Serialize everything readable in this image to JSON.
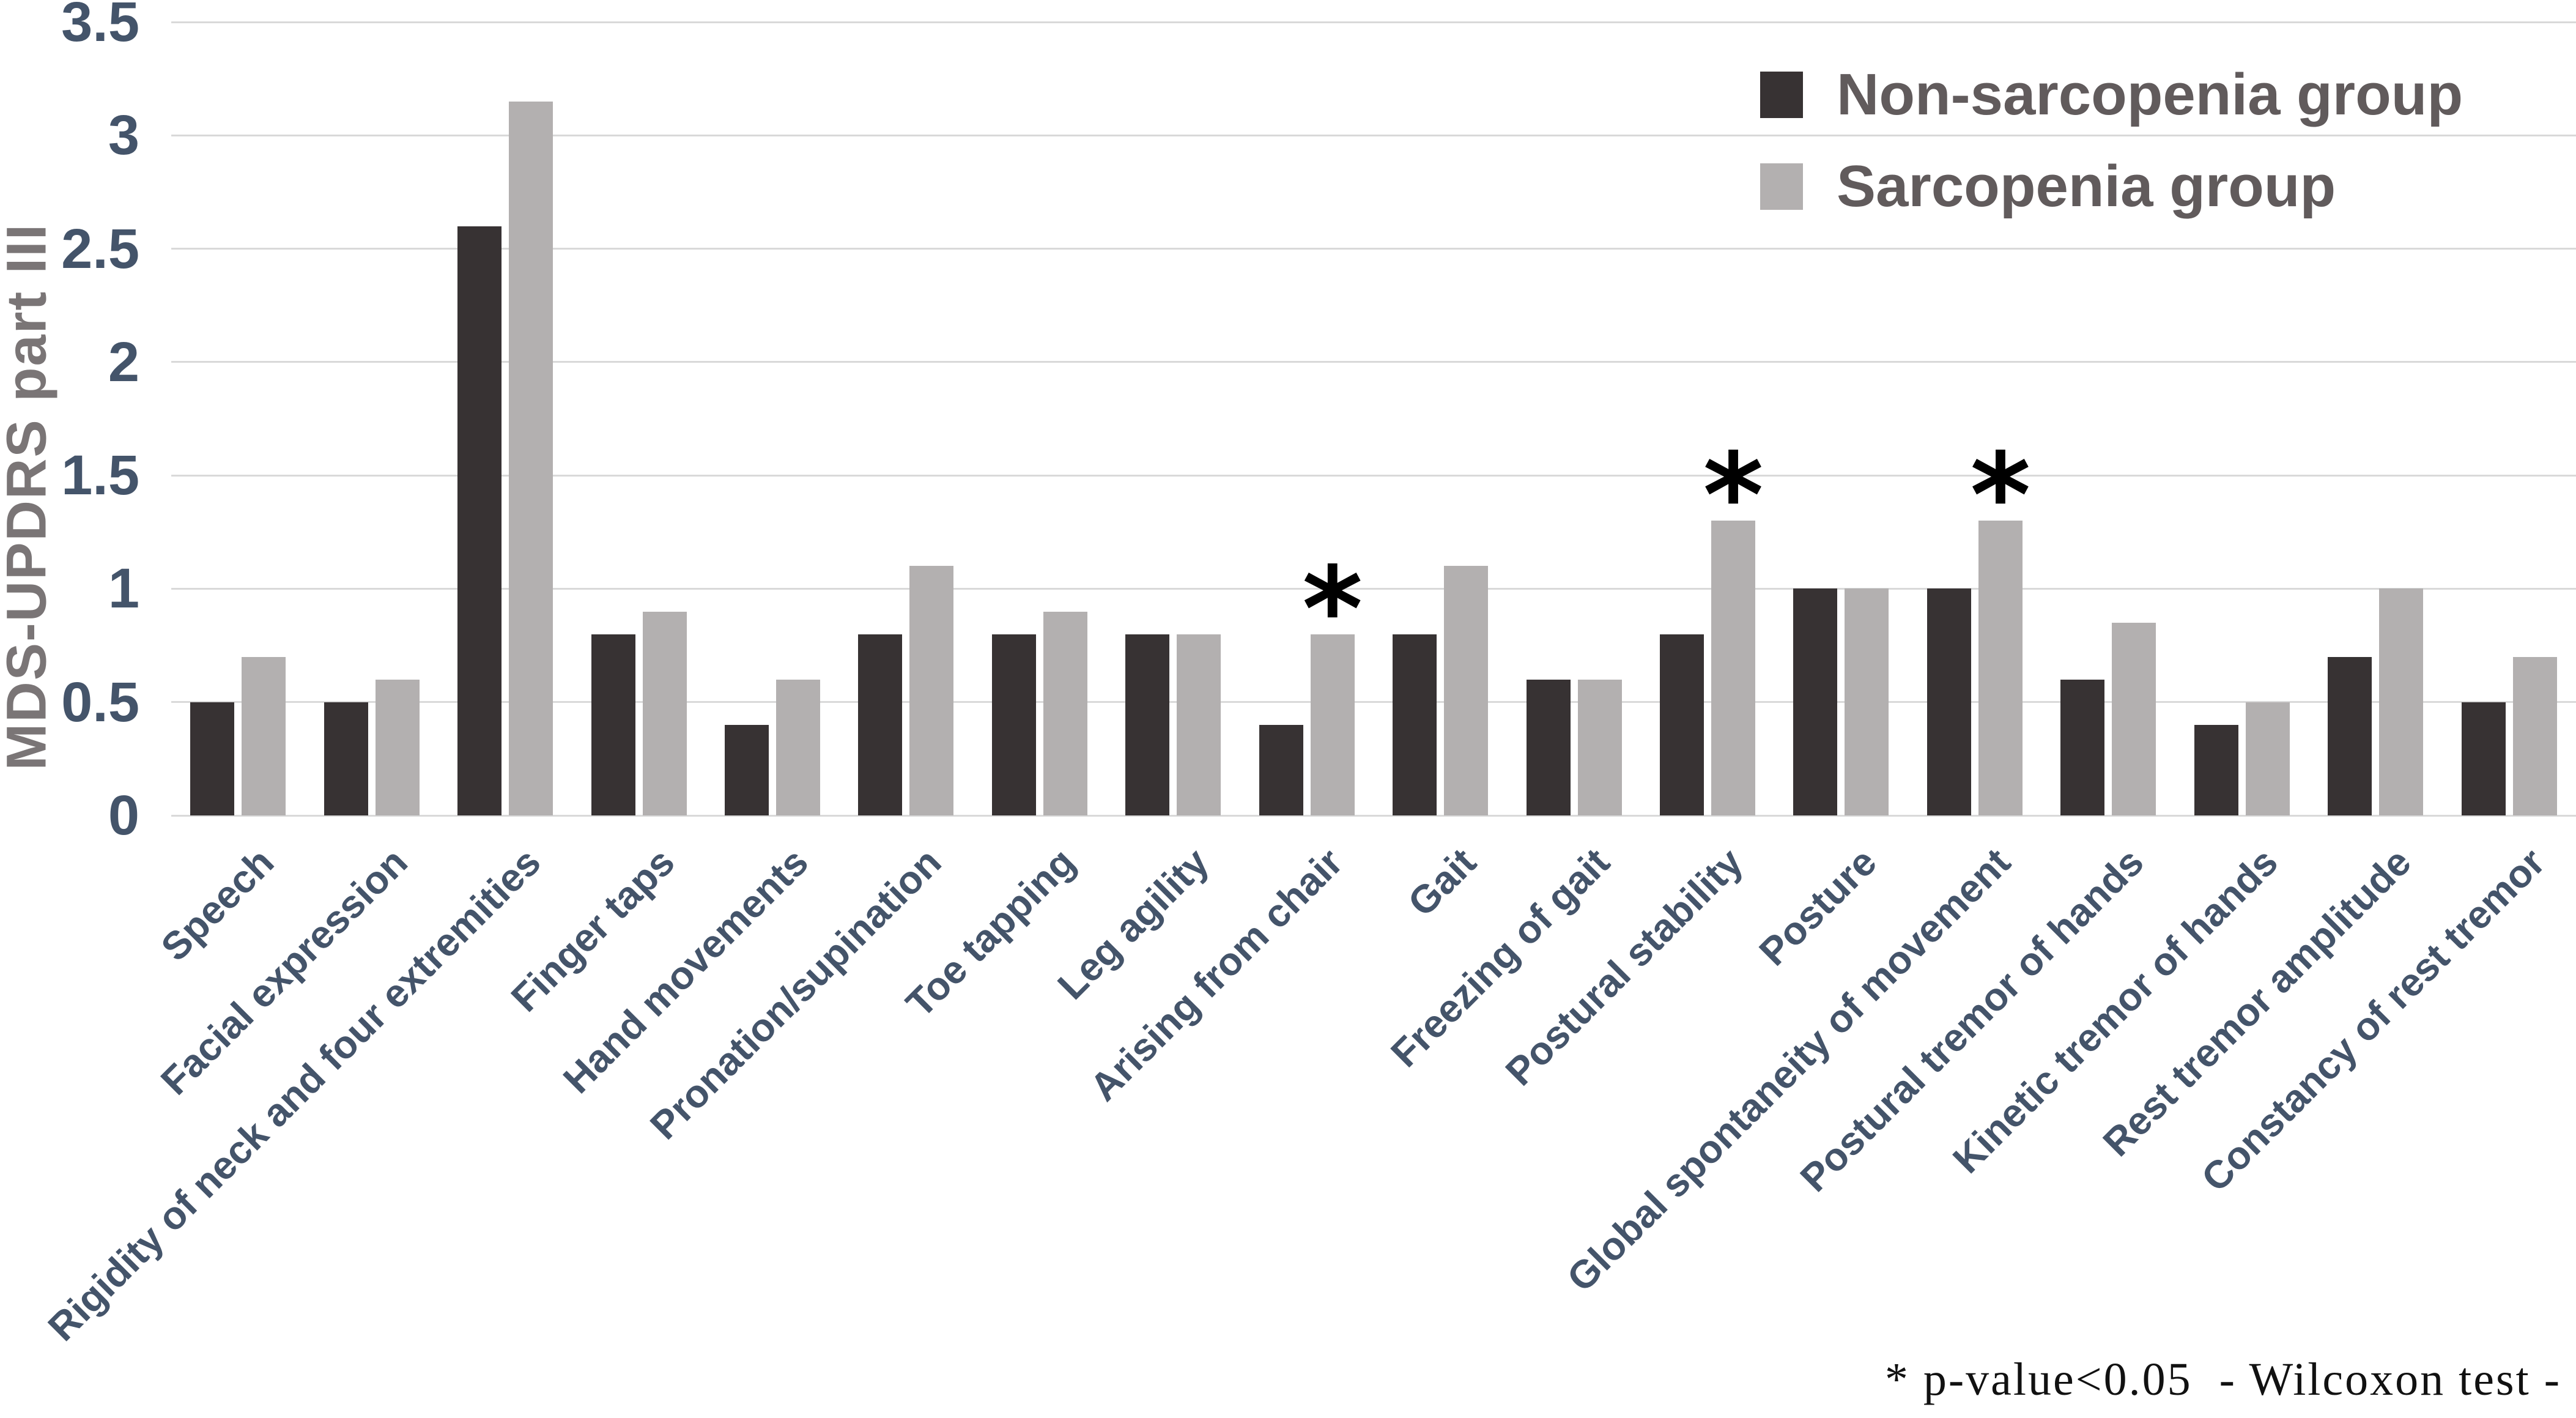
{
  "figure": {
    "y_axis_title": "MDS-UPDRS part III",
    "footnote": "* p-value<0.05  - Wilcoxon test -"
  },
  "chart_data": {
    "type": "bar",
    "title": "",
    "xlabel": "",
    "ylabel": "MDS-UPDRS part III",
    "ylim": [
      0,
      3.5
    ],
    "yticks": [
      "0",
      "0.5",
      "1",
      "1.5",
      "2",
      "2.5",
      "3",
      "3.5"
    ],
    "grid": true,
    "legend_position": "top-right",
    "categories": [
      "Speech",
      "Facial expression",
      "Rigidity of neck and four extremities",
      "Finger taps",
      "Hand movements",
      "Pronation/supination",
      "Toe tapping",
      "Leg agility",
      "Arising from chair",
      "Gait",
      "Freezing of gait",
      "Postural stability",
      "Posture",
      "Global spontaneity of movement",
      "Postural tremor of hands",
      "Kinetic tremor of hands",
      "Rest tremor amplitude",
      "Constancy of rest tremor"
    ],
    "series": [
      {
        "name": "Non-sarcopenia group",
        "color": "#373233",
        "values": [
          0.5,
          0.5,
          2.6,
          0.8,
          0.4,
          0.8,
          0.8,
          0.8,
          0.4,
          0.8,
          0.6,
          0.8,
          1.0,
          1.0,
          0.6,
          0.4,
          0.7,
          0.5
        ]
      },
      {
        "name": "Sarcopenia group",
        "color": "#b3b0b0",
        "values": [
          0.7,
          0.6,
          3.15,
          0.9,
          0.6,
          1.1,
          0.9,
          0.8,
          0.8,
          1.1,
          0.6,
          1.3,
          1.0,
          1.3,
          0.85,
          0.5,
          1.0,
          0.7
        ]
      }
    ],
    "significance_marker": "*",
    "significant_categories": [
      "Arising from chair",
      "Postural stability",
      "Global spontaneity of movement"
    ]
  }
}
